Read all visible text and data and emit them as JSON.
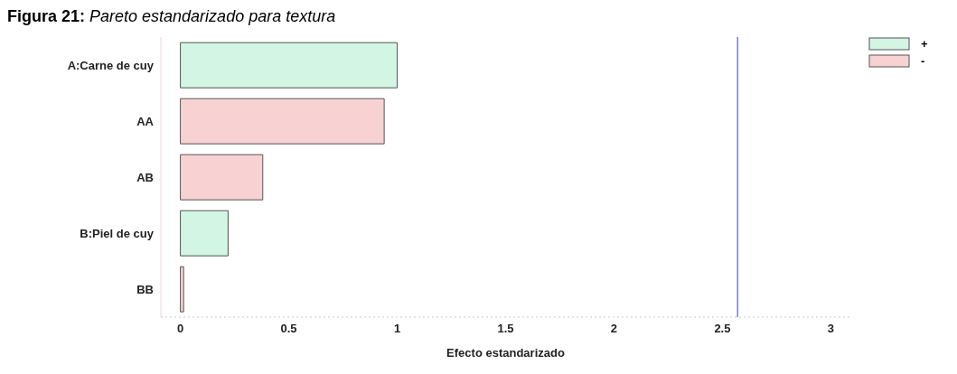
{
  "chart_data": {
    "type": "bar",
    "orientation": "horizontal",
    "stacked": true,
    "title": "Figura 21: Pareto estandarizado para textura",
    "xlabel": "Efecto estandarizado",
    "categories": [
      "A:Carne de cuy",
      "AA",
      "AB",
      "B:Piel de cuy",
      "BB"
    ],
    "series": [
      {
        "name": "+",
        "color": "#d2f5e4",
        "values": [
          1.0,
          null,
          null,
          0.22,
          null
        ]
      },
      {
        "name": "-",
        "color": "#f8d2d2",
        "values": [
          null,
          0.94,
          0.38,
          null,
          0.015
        ]
      }
    ],
    "xlim": [
      -0.09,
      3.09
    ],
    "xticks": [
      0,
      0.5,
      1,
      1.5,
      2,
      2.5,
      3
    ],
    "ref_lines": [
      {
        "axis": "x",
        "value": 2.57,
        "color": "#7b7bd8"
      }
    ],
    "legend": "top right"
  }
}
